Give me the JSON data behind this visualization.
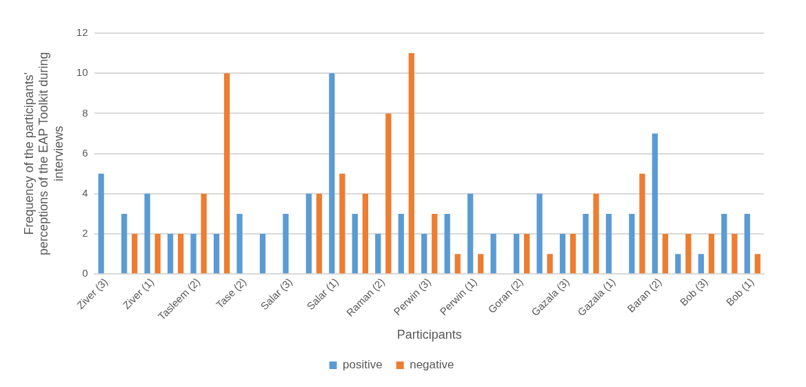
{
  "chart_data": {
    "type": "bar",
    "xlabel": "Participants",
    "ylabel": "Frequency of the participants' perceptions of the EAP Toolkit during interviews",
    "categories": [
      "Ziver (3)",
      null,
      "Ziver (1)",
      null,
      "Tasleem (2)",
      null,
      "Tase (2)",
      null,
      "Salar (3)",
      null,
      "Salar (1)",
      null,
      "Raman (2)",
      null,
      "Perwin (3)",
      null,
      "Perwin (1)",
      null,
      "Goran (2)",
      null,
      "Gazala (3)",
      null,
      "Gazala (1)",
      null,
      "Baran (2)",
      null,
      "Bob (3)",
      null,
      "Bob (1)"
    ],
    "series": [
      {
        "name": "positive",
        "color": "#5b9bd5",
        "values": [
          5,
          3,
          4,
          2,
          2,
          2,
          3,
          2,
          3,
          4,
          10,
          3,
          2,
          3,
          2,
          3,
          4,
          2,
          2,
          4,
          2,
          3,
          3,
          3,
          7,
          1,
          1,
          3,
          3
        ]
      },
      {
        "name": "negative",
        "color": "#ed7d31",
        "values": [
          0,
          2,
          2,
          2,
          4,
          10,
          0,
          0,
          0,
          4,
          5,
          4,
          8,
          11,
          3,
          1,
          1,
          0,
          2,
          1,
          2,
          4,
          0,
          5,
          2,
          2,
          2,
          2,
          1
        ]
      }
    ],
    "ylim": [
      0,
      12
    ],
    "yticks": [
      0,
      2,
      4,
      6,
      8,
      10,
      12
    ],
    "grid": "y",
    "legend": "bottom"
  }
}
